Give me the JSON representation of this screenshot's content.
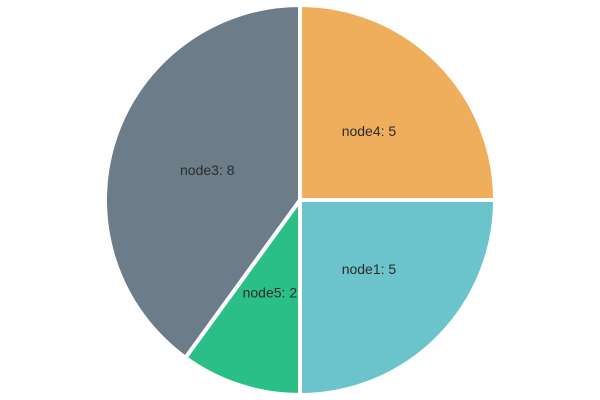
{
  "chart_data": {
    "type": "pie",
    "slices": [
      {
        "label": "node1",
        "value": 5,
        "color": "#6bc3cc",
        "text": "node1: 5"
      },
      {
        "label": "node5",
        "value": 2,
        "color": "#2bbf88",
        "text": "node5: 2"
      },
      {
        "label": "node3",
        "value": 8,
        "color": "#6c7d89",
        "text": "node3: 8"
      },
      {
        "label": "node4",
        "value": 5,
        "color": "#efae5c",
        "text": "node4: 5"
      }
    ],
    "start": "top, clockwise order node4, node1, node5, node3",
    "legend": "none",
    "separator_color": "#ffffff"
  }
}
